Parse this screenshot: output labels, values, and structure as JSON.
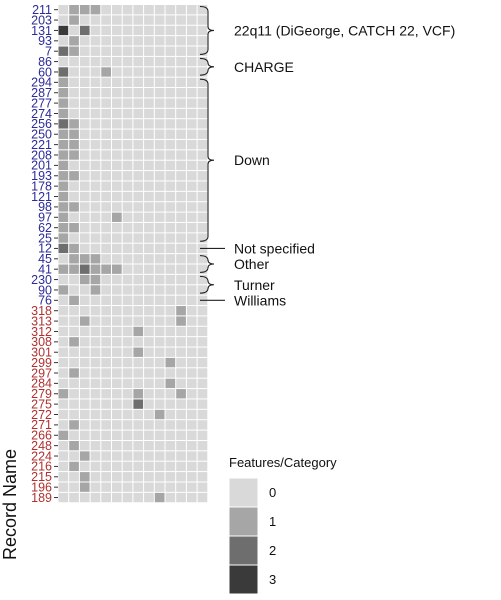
{
  "chart_data": {
    "type": "heatmap",
    "ylabel": "Record Name",
    "n_columns": 14,
    "rows": [
      {
        "name": "211",
        "group": "A",
        "cells": [
          0,
          1,
          1,
          1,
          0,
          0,
          0,
          0,
          0,
          0,
          0,
          0,
          0,
          0
        ]
      },
      {
        "name": "203",
        "group": "A",
        "cells": [
          0,
          1,
          0,
          0,
          0,
          0,
          0,
          0,
          0,
          0,
          0,
          0,
          0,
          0
        ]
      },
      {
        "name": "131",
        "group": "A",
        "cells": [
          3,
          0,
          2,
          0,
          0,
          0,
          0,
          0,
          0,
          0,
          0,
          0,
          0,
          0
        ]
      },
      {
        "name": "93",
        "group": "A",
        "cells": [
          0,
          1,
          0,
          0,
          0,
          0,
          0,
          0,
          0,
          0,
          0,
          0,
          0,
          0
        ]
      },
      {
        "name": "7",
        "group": "A",
        "cells": [
          2,
          1,
          0,
          0,
          0,
          0,
          0,
          0,
          0,
          0,
          0,
          0,
          0,
          0
        ]
      },
      {
        "name": "86",
        "group": "A",
        "cells": [
          0,
          0,
          0,
          0,
          0,
          0,
          0,
          0,
          0,
          0,
          0,
          0,
          0,
          0
        ]
      },
      {
        "name": "60",
        "group": "A",
        "cells": [
          2,
          0,
          0,
          0,
          1,
          0,
          0,
          0,
          0,
          0,
          0,
          0,
          0,
          0
        ]
      },
      {
        "name": "294",
        "group": "A",
        "cells": [
          1,
          0,
          0,
          0,
          0,
          0,
          0,
          0,
          0,
          0,
          0,
          0,
          0,
          0
        ]
      },
      {
        "name": "287",
        "group": "A",
        "cells": [
          1,
          0,
          0,
          0,
          0,
          0,
          0,
          0,
          0,
          0,
          0,
          0,
          0,
          0
        ]
      },
      {
        "name": "277",
        "group": "A",
        "cells": [
          1,
          0,
          0,
          0,
          0,
          0,
          0,
          0,
          0,
          0,
          0,
          0,
          0,
          0
        ]
      },
      {
        "name": "274",
        "group": "A",
        "cells": [
          1,
          0,
          0,
          0,
          0,
          0,
          0,
          0,
          0,
          0,
          0,
          0,
          0,
          0
        ]
      },
      {
        "name": "256",
        "group": "A",
        "cells": [
          2,
          1,
          0,
          0,
          0,
          0,
          0,
          0,
          0,
          0,
          0,
          0,
          0,
          0
        ]
      },
      {
        "name": "250",
        "group": "A",
        "cells": [
          1,
          1,
          0,
          0,
          0,
          0,
          0,
          0,
          0,
          0,
          0,
          0,
          0,
          0
        ]
      },
      {
        "name": "221",
        "group": "A",
        "cells": [
          1,
          1,
          0,
          0,
          0,
          0,
          0,
          0,
          0,
          0,
          0,
          0,
          0,
          0
        ]
      },
      {
        "name": "208",
        "group": "A",
        "cells": [
          1,
          1,
          0,
          0,
          0,
          0,
          0,
          0,
          0,
          0,
          0,
          0,
          0,
          0
        ]
      },
      {
        "name": "201",
        "group": "A",
        "cells": [
          1,
          0,
          0,
          0,
          0,
          0,
          0,
          0,
          0,
          0,
          0,
          0,
          0,
          0
        ]
      },
      {
        "name": "193",
        "group": "A",
        "cells": [
          1,
          1,
          0,
          0,
          0,
          0,
          0,
          0,
          0,
          0,
          0,
          0,
          0,
          0
        ]
      },
      {
        "name": "178",
        "group": "A",
        "cells": [
          1,
          0,
          0,
          0,
          0,
          0,
          0,
          0,
          0,
          0,
          0,
          0,
          0,
          0
        ]
      },
      {
        "name": "121",
        "group": "A",
        "cells": [
          1,
          0,
          0,
          0,
          0,
          0,
          0,
          0,
          0,
          0,
          0,
          0,
          0,
          0
        ]
      },
      {
        "name": "98",
        "group": "A",
        "cells": [
          1,
          1,
          0,
          0,
          0,
          0,
          0,
          0,
          0,
          0,
          0,
          0,
          0,
          0
        ]
      },
      {
        "name": "97",
        "group": "A",
        "cells": [
          1,
          0,
          0,
          0,
          0,
          1,
          0,
          0,
          0,
          0,
          0,
          0,
          0,
          0
        ]
      },
      {
        "name": "62",
        "group": "A",
        "cells": [
          1,
          1,
          0,
          0,
          0,
          0,
          0,
          0,
          0,
          0,
          0,
          0,
          0,
          0
        ]
      },
      {
        "name": "25",
        "group": "A",
        "cells": [
          1,
          0,
          0,
          0,
          0,
          0,
          0,
          0,
          0,
          0,
          0,
          0,
          0,
          0
        ]
      },
      {
        "name": "12",
        "group": "A",
        "cells": [
          2,
          1,
          0,
          0,
          0,
          0,
          0,
          0,
          0,
          0,
          0,
          0,
          0,
          0
        ]
      },
      {
        "name": "45",
        "group": "A",
        "cells": [
          0,
          1,
          1,
          1,
          0,
          0,
          0,
          0,
          0,
          0,
          0,
          0,
          0,
          0
        ]
      },
      {
        "name": "41",
        "group": "A",
        "cells": [
          1,
          1,
          2,
          1,
          1,
          1,
          0,
          0,
          0,
          0,
          0,
          0,
          0,
          0
        ]
      },
      {
        "name": "230",
        "group": "A",
        "cells": [
          0,
          0,
          1,
          1,
          0,
          0,
          0,
          0,
          0,
          0,
          0,
          0,
          0,
          0
        ]
      },
      {
        "name": "90",
        "group": "A",
        "cells": [
          1,
          0,
          0,
          1,
          0,
          0,
          0,
          0,
          0,
          0,
          0,
          0,
          0,
          0
        ]
      },
      {
        "name": "76",
        "group": "A",
        "cells": [
          0,
          1,
          0,
          0,
          0,
          0,
          0,
          0,
          0,
          0,
          0,
          0,
          0,
          0
        ]
      },
      {
        "name": "318",
        "group": "B",
        "cells": [
          0,
          0,
          0,
          0,
          0,
          0,
          0,
          0,
          0,
          0,
          0,
          1,
          0,
          0
        ]
      },
      {
        "name": "313",
        "group": "B",
        "cells": [
          0,
          0,
          1,
          0,
          0,
          0,
          0,
          0,
          0,
          0,
          0,
          1,
          0,
          0
        ]
      },
      {
        "name": "312",
        "group": "B",
        "cells": [
          0,
          0,
          0,
          0,
          0,
          0,
          0,
          1,
          0,
          0,
          0,
          0,
          0,
          0
        ]
      },
      {
        "name": "308",
        "group": "B",
        "cells": [
          0,
          1,
          0,
          0,
          0,
          0,
          0,
          0,
          0,
          0,
          0,
          0,
          0,
          0
        ]
      },
      {
        "name": "301",
        "group": "B",
        "cells": [
          0,
          0,
          0,
          0,
          0,
          0,
          0,
          1,
          0,
          0,
          0,
          0,
          0,
          0
        ]
      },
      {
        "name": "299",
        "group": "B",
        "cells": [
          0,
          0,
          0,
          0,
          0,
          0,
          0,
          0,
          0,
          0,
          1,
          0,
          0,
          0
        ]
      },
      {
        "name": "297",
        "group": "B",
        "cells": [
          0,
          1,
          0,
          0,
          0,
          0,
          0,
          0,
          0,
          0,
          0,
          0,
          0,
          0
        ]
      },
      {
        "name": "284",
        "group": "B",
        "cells": [
          0,
          0,
          0,
          0,
          0,
          0,
          0,
          0,
          0,
          0,
          1,
          0,
          0,
          0
        ]
      },
      {
        "name": "279",
        "group": "B",
        "cells": [
          1,
          0,
          0,
          0,
          0,
          0,
          0,
          1,
          0,
          0,
          0,
          1,
          0,
          0
        ]
      },
      {
        "name": "275",
        "group": "B",
        "cells": [
          0,
          0,
          0,
          0,
          0,
          0,
          0,
          2,
          0,
          0,
          0,
          0,
          0,
          0
        ]
      },
      {
        "name": "272",
        "group": "B",
        "cells": [
          0,
          0,
          0,
          0,
          0,
          0,
          0,
          0,
          0,
          1,
          0,
          0,
          0,
          0
        ]
      },
      {
        "name": "271",
        "group": "B",
        "cells": [
          0,
          1,
          0,
          0,
          0,
          0,
          0,
          0,
          0,
          0,
          0,
          0,
          0,
          0
        ]
      },
      {
        "name": "266",
        "group": "B",
        "cells": [
          1,
          0,
          0,
          0,
          0,
          0,
          0,
          0,
          0,
          0,
          0,
          0,
          0,
          0
        ]
      },
      {
        "name": "248",
        "group": "B",
        "cells": [
          0,
          1,
          0,
          0,
          0,
          0,
          0,
          0,
          0,
          0,
          0,
          0,
          0,
          0
        ]
      },
      {
        "name": "224",
        "group": "B",
        "cells": [
          0,
          0,
          1,
          0,
          0,
          0,
          0,
          0,
          0,
          0,
          0,
          0,
          0,
          0
        ]
      },
      {
        "name": "216",
        "group": "B",
        "cells": [
          0,
          1,
          0,
          0,
          0,
          0,
          0,
          0,
          0,
          0,
          0,
          0,
          0,
          0
        ]
      },
      {
        "name": "215",
        "group": "B",
        "cells": [
          0,
          0,
          1,
          0,
          0,
          0,
          0,
          0,
          0,
          0,
          0,
          0,
          0,
          0
        ]
      },
      {
        "name": "196",
        "group": "B",
        "cells": [
          0,
          0,
          1,
          0,
          0,
          0,
          0,
          0,
          0,
          0,
          0,
          0,
          0,
          0
        ]
      },
      {
        "name": "189",
        "group": "B",
        "cells": [
          0,
          0,
          0,
          0,
          0,
          0,
          0,
          0,
          0,
          1,
          0,
          0,
          0,
          0
        ]
      }
    ],
    "row_groups": [
      {
        "label": "22q11 (DiGeorge, CATCH 22, VCF)",
        "from": "211",
        "to": "7"
      },
      {
        "label": "CHARGE",
        "from": "86",
        "to": "60"
      },
      {
        "label": "Down",
        "from": "294",
        "to": "25"
      },
      {
        "label": "Not specified",
        "from": "12",
        "to": "12"
      },
      {
        "label": "Other",
        "from": "45",
        "to": "41"
      },
      {
        "label": "Turner",
        "from": "230",
        "to": "90"
      },
      {
        "label": "Williams",
        "from": "76",
        "to": "76"
      }
    ],
    "legend": {
      "title": "Features/Category",
      "placement": "right",
      "levels": [
        {
          "value": 0,
          "label": "0",
          "color": "#d9d9d9"
        },
        {
          "value": 1,
          "label": "1",
          "color": "#a6a6a6"
        },
        {
          "value": 2,
          "label": "2",
          "color": "#6e6e6e"
        },
        {
          "value": 3,
          "label": "3",
          "color": "#3a3a3a"
        }
      ]
    },
    "label_colors": {
      "A": "#2b2b9a",
      "B": "#b03030"
    }
  }
}
